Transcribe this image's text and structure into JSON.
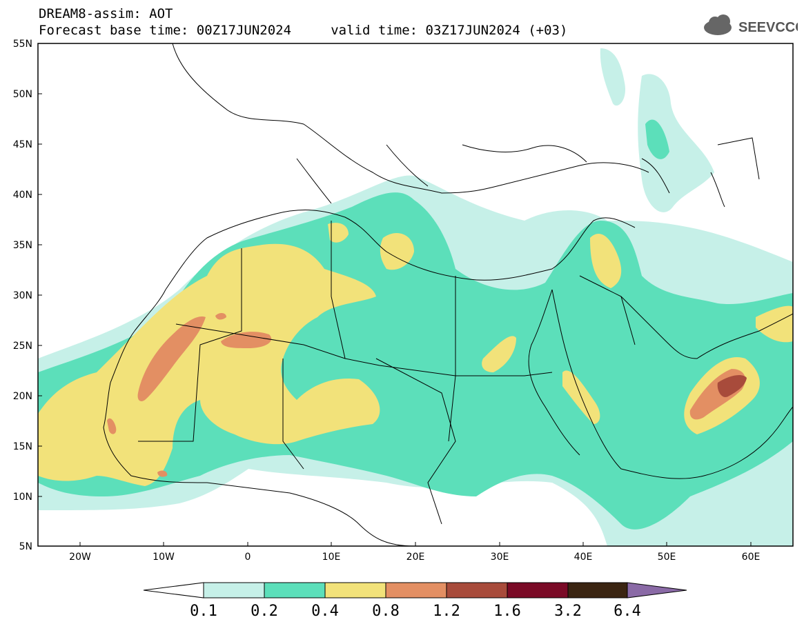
{
  "title": {
    "line1": "DREAM8-assim: AOT",
    "line2": "Forecast base time: 00Z17JUN2024     valid time: 03Z17JUN2024 (+03)"
  },
  "logo": {
    "text": "SEEVCCC",
    "icon": "cloud-icon"
  },
  "axes": {
    "lon_labels": [
      "20W",
      "10W",
      "0",
      "10E",
      "20E",
      "30E",
      "40E",
      "50E",
      "60E"
    ],
    "lat_labels": [
      "55N",
      "50N",
      "45N",
      "40N",
      "35N",
      "30N",
      "25N",
      "20N",
      "15N",
      "10N",
      "5N"
    ],
    "lon_range": [
      -25,
      65
    ],
    "lat_range": [
      5,
      55
    ]
  },
  "colorbar": {
    "ticks": [
      "0.1",
      "0.2",
      "0.4",
      "0.8",
      "1.2",
      "1.6",
      "3.2",
      "6.4"
    ],
    "colors": [
      "#ffffff",
      "#c6f0e8",
      "#5cdfba",
      "#f2e27a",
      "#e38f63",
      "#a84b3b",
      "#7a0a26",
      "#3b2512",
      "#8a6aa6"
    ]
  }
}
